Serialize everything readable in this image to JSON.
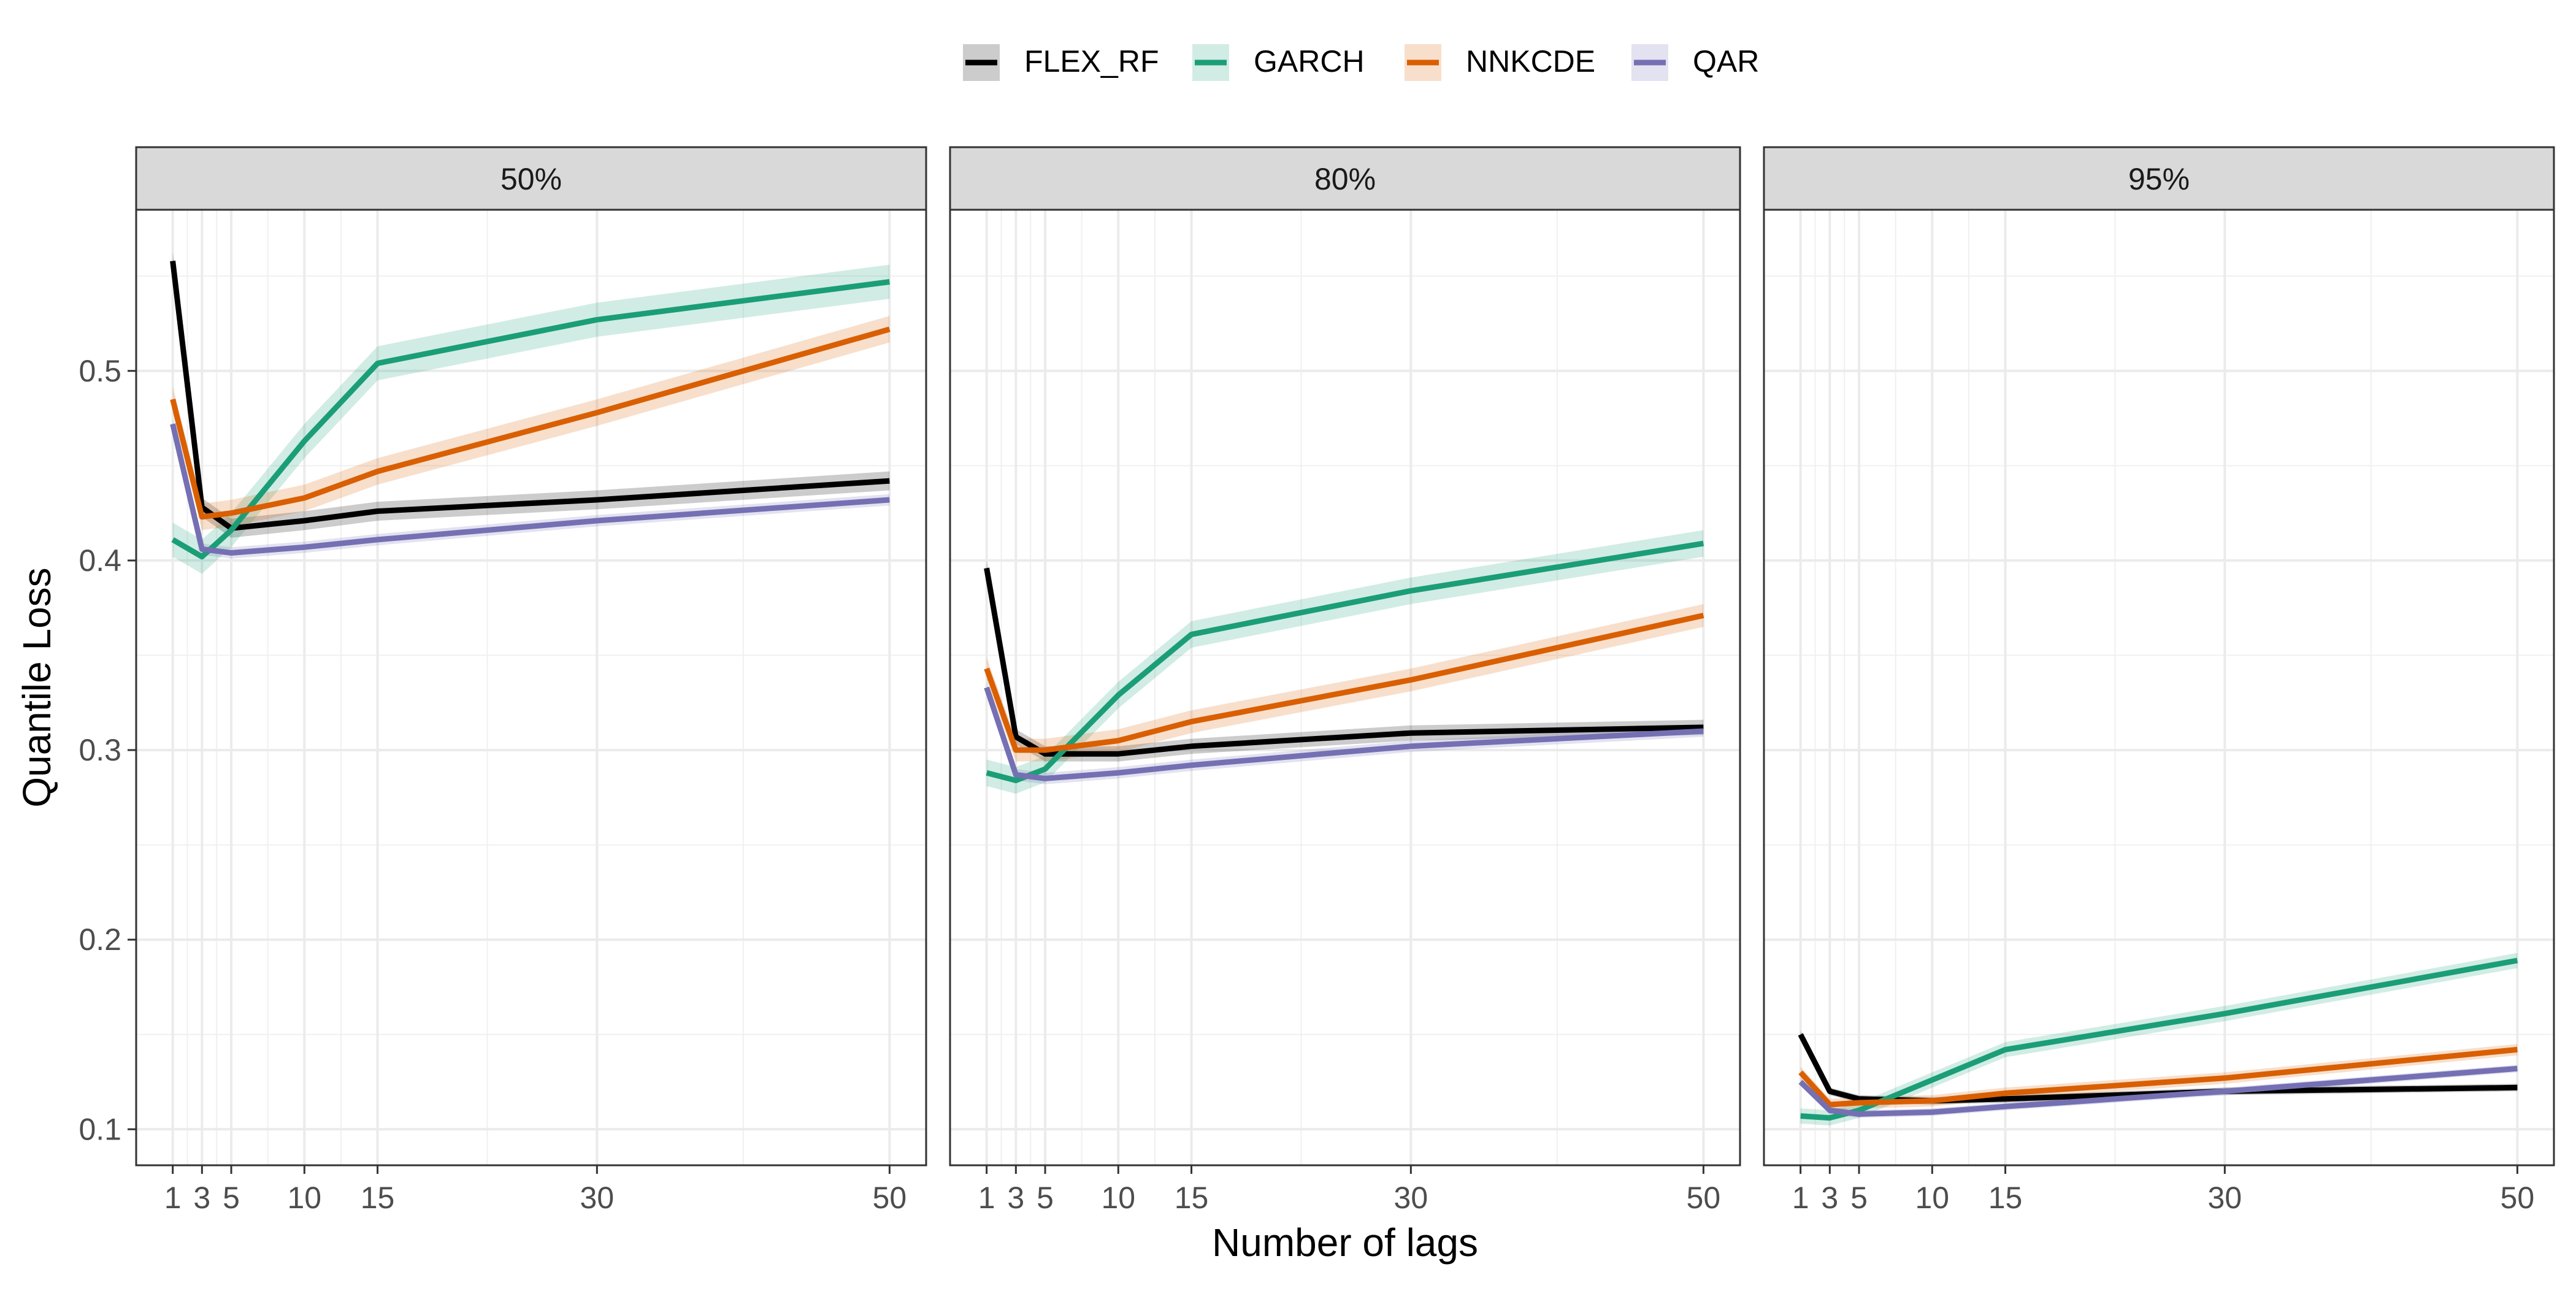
{
  "chart_data": {
    "type": "line",
    "xlabel": "Number of lags",
    "ylabel": "Quantile Loss",
    "x": [
      1,
      3,
      5,
      10,
      15,
      30,
      50
    ],
    "x_ticks": [
      1,
      3,
      5,
      10,
      15,
      30,
      50
    ],
    "x_tick_labels": [
      "1",
      "3",
      "5",
      "10",
      "15",
      "30",
      "50"
    ],
    "xlim": [
      -1.5,
      52.5
    ],
    "y_ticks": [
      0.1,
      0.2,
      0.3,
      0.4,
      0.5
    ],
    "y_tick_labels": [
      "0.1",
      "0.2",
      "0.3",
      "0.4",
      "0.5"
    ],
    "ylim": [
      0.081,
      0.585
    ],
    "grid": true,
    "legend_position": "top",
    "legend": [
      {
        "name": "FLEX_RF",
        "color": "#000000"
      },
      {
        "name": "GARCH",
        "color": "#1b9e77"
      },
      {
        "name": "NNKCDE",
        "color": "#d95f02"
      },
      {
        "name": "QAR",
        "color": "#7570b3"
      }
    ],
    "panels": [
      {
        "title": "50%",
        "series": [
          {
            "name": "FLEX_RF",
            "values": [
              0.558,
              0.428,
              0.417,
              0.421,
              0.426,
              0.432,
              0.442
            ],
            "band": 0.005
          },
          {
            "name": "GARCH",
            "values": [
              0.411,
              0.402,
              0.416,
              0.463,
              0.504,
              0.527,
              0.547
            ],
            "band": 0.009
          },
          {
            "name": "NNKCDE",
            "values": [
              0.485,
              0.423,
              0.425,
              0.433,
              0.447,
              0.478,
              0.522
            ],
            "band": 0.007
          },
          {
            "name": "QAR",
            "values": [
              0.472,
              0.406,
              0.404,
              0.407,
              0.411,
              0.421,
              0.432
            ],
            "band": 0.003
          }
        ]
      },
      {
        "title": "80%",
        "series": [
          {
            "name": "FLEX_RF",
            "values": [
              0.396,
              0.307,
              0.298,
              0.298,
              0.302,
              0.309,
              0.312
            ],
            "band": 0.004
          },
          {
            "name": "GARCH",
            "values": [
              0.288,
              0.284,
              0.29,
              0.329,
              0.361,
              0.384,
              0.409
            ],
            "band": 0.007
          },
          {
            "name": "NNKCDE",
            "values": [
              0.343,
              0.3,
              0.3,
              0.305,
              0.315,
              0.337,
              0.371
            ],
            "band": 0.006
          },
          {
            "name": "QAR",
            "values": [
              0.333,
              0.287,
              0.285,
              0.288,
              0.292,
              0.302,
              0.31
            ],
            "band": 0.003
          }
        ]
      },
      {
        "title": "95%",
        "series": [
          {
            "name": "FLEX_RF",
            "values": [
              0.15,
              0.12,
              0.116,
              0.115,
              0.116,
              0.12,
              0.122
            ],
            "band": 0.002
          },
          {
            "name": "GARCH",
            "values": [
              0.107,
              0.106,
              0.11,
              0.126,
              0.142,
              0.161,
              0.189
            ],
            "band": 0.004
          },
          {
            "name": "NNKCDE",
            "values": [
              0.13,
              0.113,
              0.114,
              0.115,
              0.119,
              0.127,
              0.142
            ],
            "band": 0.003
          },
          {
            "name": "QAR",
            "values": [
              0.125,
              0.11,
              0.108,
              0.109,
              0.112,
              0.12,
              0.132
            ],
            "band": 0.002
          }
        ]
      }
    ]
  }
}
